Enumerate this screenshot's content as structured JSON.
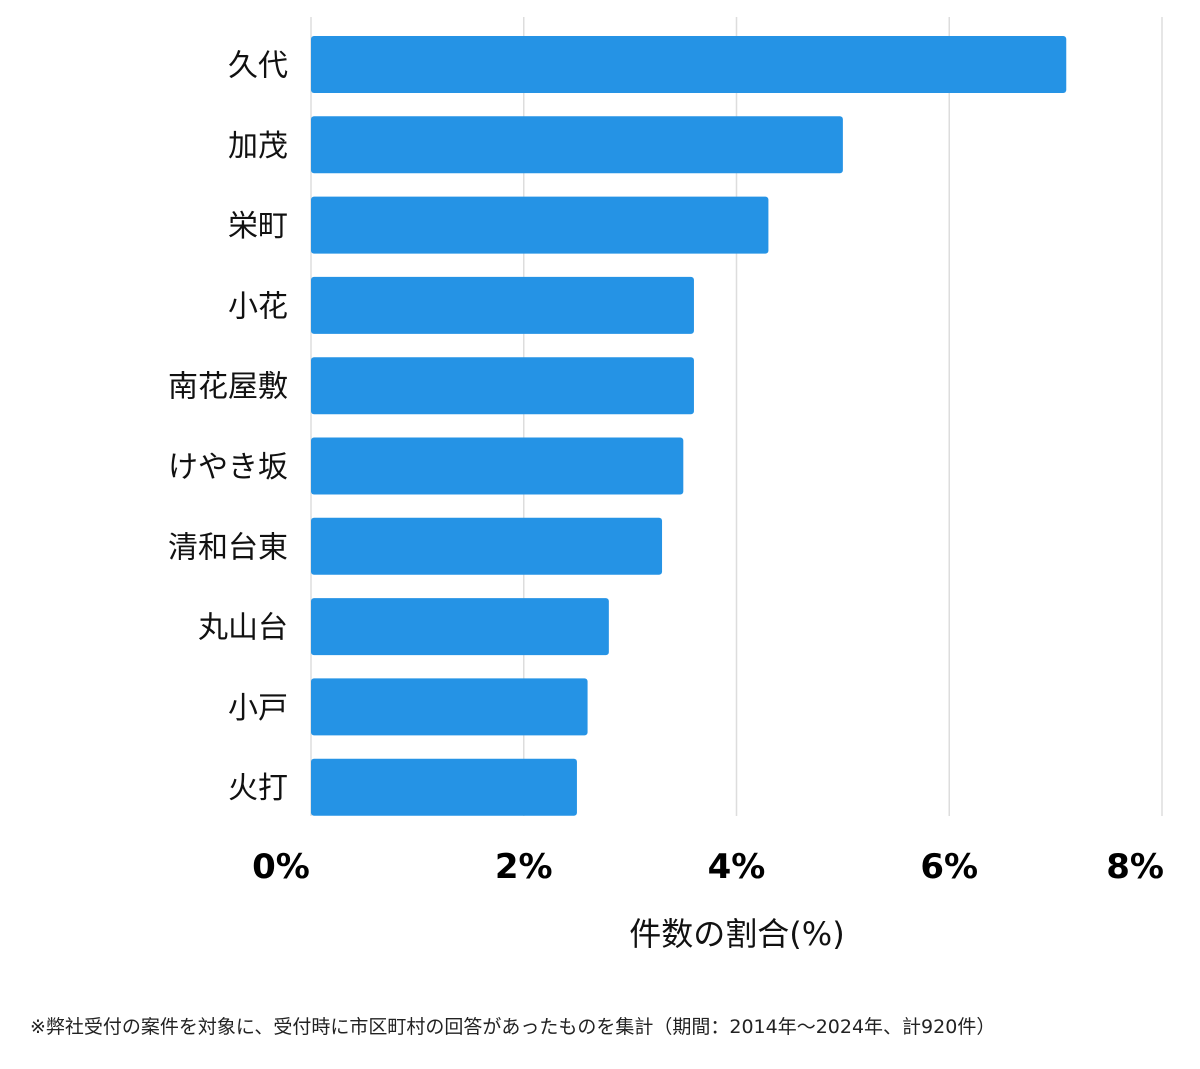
{
  "chart_data": {
    "type": "bar",
    "orientation": "horizontal",
    "categories": [
      "久代",
      "加茂",
      "栄町",
      "小花",
      "南花屋敷",
      "けやき坂",
      "清和台東",
      "丸山台",
      "小戸",
      "火打"
    ],
    "values": [
      7.1,
      5.0,
      4.3,
      3.6,
      3.6,
      3.5,
      3.3,
      2.8,
      2.6,
      2.5
    ],
    "xlim": [
      0,
      8
    ],
    "xticks": [
      0,
      2,
      4,
      6,
      8
    ],
    "tick_labels": [
      "0%",
      "2%",
      "4%",
      "6%",
      "8%"
    ],
    "xlabel": "件数の割合(%)",
    "grid": true,
    "bar_color": "#2593E5"
  },
  "footnote": "※弊社受付の案件を対象に、受付時に市区町村の回答があったものを集計（期間：2014年～2024年、計920件）"
}
